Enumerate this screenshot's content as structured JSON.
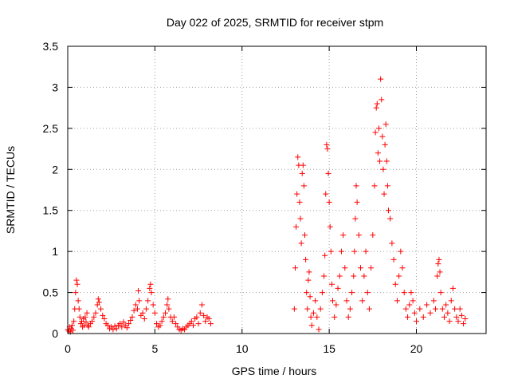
{
  "chart_data": {
    "type": "scatter",
    "title": "Day 022 of 2025, SRMTID for receiver stpm",
    "xlabel": "GPS time / hours",
    "ylabel": "SRMTID / TECUs",
    "xlim": [
      0,
      24
    ],
    "ylim": [
      0,
      3.5
    ],
    "x_ticks": [
      0,
      5,
      10,
      15,
      20
    ],
    "x_tick_labels": [
      "0",
      "5",
      "10",
      "15",
      "20"
    ],
    "y_ticks": [
      0,
      0.5,
      1,
      1.5,
      2,
      2.5,
      3,
      3.5
    ],
    "y_tick_labels": [
      "0",
      "0.5",
      "1",
      "1.5",
      "2",
      "2.5",
      "3",
      "3.5"
    ],
    "grid": true,
    "marker": "+",
    "series": [
      {
        "name": "SRMTID",
        "color": "#ff0000",
        "points": [
          [
            0.0,
            0.05
          ],
          [
            0.05,
            0.03
          ],
          [
            0.1,
            0.08
          ],
          [
            0.15,
            0.02
          ],
          [
            0.2,
            0.06
          ],
          [
            0.25,
            0.1
          ],
          [
            0.3,
            0.04
          ],
          [
            0.35,
            0.15
          ],
          [
            0.4,
            0.3
          ],
          [
            0.45,
            0.5
          ],
          [
            0.5,
            0.65
          ],
          [
            0.55,
            0.6
          ],
          [
            0.6,
            0.4
          ],
          [
            0.65,
            0.3
          ],
          [
            0.7,
            0.2
          ],
          [
            0.75,
            0.12
          ],
          [
            0.8,
            0.15
          ],
          [
            0.85,
            0.08
          ],
          [
            0.9,
            0.18
          ],
          [
            0.95,
            0.1
          ],
          [
            1.0,
            0.2
          ],
          [
            1.05,
            0.14
          ],
          [
            1.1,
            0.25
          ],
          [
            1.15,
            0.1
          ],
          [
            1.2,
            0.08
          ],
          [
            1.3,
            0.12
          ],
          [
            1.4,
            0.15
          ],
          [
            1.5,
            0.2
          ],
          [
            1.6,
            0.25
          ],
          [
            1.7,
            0.35
          ],
          [
            1.75,
            0.42
          ],
          [
            1.8,
            0.38
          ],
          [
            1.9,
            0.3
          ],
          [
            2.0,
            0.22
          ],
          [
            2.1,
            0.18
          ],
          [
            2.2,
            0.12
          ],
          [
            2.3,
            0.1
          ],
          [
            2.4,
            0.06
          ],
          [
            2.5,
            0.08
          ],
          [
            2.6,
            0.05
          ],
          [
            2.7,
            0.09
          ],
          [
            2.8,
            0.06
          ],
          [
            2.9,
            0.1
          ],
          [
            3.0,
            0.12
          ],
          [
            3.1,
            0.08
          ],
          [
            3.2,
            0.14
          ],
          [
            3.3,
            0.1
          ],
          [
            3.4,
            0.07
          ],
          [
            3.5,
            0.12
          ],
          [
            3.6,
            0.16
          ],
          [
            3.7,
            0.2
          ],
          [
            3.8,
            0.28
          ],
          [
            3.9,
            0.35
          ],
          [
            4.0,
            0.3
          ],
          [
            4.05,
            0.52
          ],
          [
            4.1,
            0.4
          ],
          [
            4.2,
            0.22
          ],
          [
            4.3,
            0.25
          ],
          [
            4.4,
            0.18
          ],
          [
            4.5,
            0.3
          ],
          [
            4.6,
            0.4
          ],
          [
            4.7,
            0.55
          ],
          [
            4.75,
            0.6
          ],
          [
            4.8,
            0.5
          ],
          [
            4.9,
            0.35
          ],
          [
            5.0,
            0.25
          ],
          [
            5.1,
            0.12
          ],
          [
            5.2,
            0.08
          ],
          [
            5.3,
            0.1
          ],
          [
            5.4,
            0.15
          ],
          [
            5.5,
            0.2
          ],
          [
            5.6,
            0.25
          ],
          [
            5.7,
            0.35
          ],
          [
            5.75,
            0.42
          ],
          [
            5.8,
            0.3
          ],
          [
            5.9,
            0.2
          ],
          [
            6.0,
            0.15
          ],
          [
            6.1,
            0.2
          ],
          [
            6.2,
            0.12
          ],
          [
            6.3,
            0.08
          ],
          [
            6.4,
            0.05
          ],
          [
            6.5,
            0.04
          ],
          [
            6.6,
            0.06
          ],
          [
            6.7,
            0.05
          ],
          [
            6.8,
            0.08
          ],
          [
            6.9,
            0.1
          ],
          [
            7.0,
            0.12
          ],
          [
            7.1,
            0.15
          ],
          [
            7.2,
            0.1
          ],
          [
            7.3,
            0.18
          ],
          [
            7.4,
            0.2
          ],
          [
            7.5,
            0.12
          ],
          [
            7.6,
            0.25
          ],
          [
            7.7,
            0.35
          ],
          [
            7.8,
            0.22
          ],
          [
            7.9,
            0.15
          ],
          [
            8.0,
            0.2
          ],
          [
            8.1,
            0.18
          ],
          [
            8.2,
            0.12
          ],
          [
            13.0,
            0.3
          ],
          [
            13.05,
            0.8
          ],
          [
            13.1,
            1.3
          ],
          [
            13.15,
            1.7
          ],
          [
            13.2,
            2.15
          ],
          [
            13.25,
            2.05
          ],
          [
            13.3,
            1.6
          ],
          [
            13.35,
            1.4
          ],
          [
            13.4,
            1.1
          ],
          [
            13.45,
            1.95
          ],
          [
            13.5,
            2.05
          ],
          [
            13.55,
            1.8
          ],
          [
            13.6,
            1.2
          ],
          [
            13.65,
            0.9
          ],
          [
            13.7,
            0.5
          ],
          [
            13.75,
            0.3
          ],
          [
            13.8,
            0.65
          ],
          [
            13.85,
            0.75
          ],
          [
            13.9,
            0.45
          ],
          [
            13.95,
            0.2
          ],
          [
            14.0,
            0.1
          ],
          [
            14.1,
            0.25
          ],
          [
            14.2,
            0.4
          ],
          [
            14.3,
            0.2
          ],
          [
            14.4,
            0.05
          ],
          [
            14.5,
            0.3
          ],
          [
            14.6,
            0.5
          ],
          [
            14.7,
            0.7
          ],
          [
            14.75,
            0.95
          ],
          [
            14.8,
            1.7
          ],
          [
            14.85,
            2.3
          ],
          [
            14.9,
            2.25
          ],
          [
            14.95,
            1.95
          ],
          [
            15.0,
            1.6
          ],
          [
            15.05,
            1.3
          ],
          [
            15.1,
            1.0
          ],
          [
            15.15,
            0.6
          ],
          [
            15.2,
            0.4
          ],
          [
            15.3,
            0.2
          ],
          [
            15.4,
            0.35
          ],
          [
            15.5,
            0.55
          ],
          [
            15.6,
            0.7
          ],
          [
            15.7,
            1.0
          ],
          [
            15.8,
            1.2
          ],
          [
            15.9,
            0.8
          ],
          [
            16.0,
            0.4
          ],
          [
            16.1,
            0.2
          ],
          [
            16.2,
            0.3
          ],
          [
            16.3,
            0.5
          ],
          [
            16.4,
            0.7
          ],
          [
            16.45,
            1.0
          ],
          [
            16.5,
            1.4
          ],
          [
            16.55,
            1.8
          ],
          [
            16.6,
            1.6
          ],
          [
            16.7,
            1.2
          ],
          [
            16.8,
            0.8
          ],
          [
            16.9,
            0.4
          ],
          [
            17.0,
            0.7
          ],
          [
            17.1,
            1.0
          ],
          [
            17.2,
            0.5
          ],
          [
            17.3,
            0.3
          ],
          [
            17.4,
            0.8
          ],
          [
            17.5,
            1.2
          ],
          [
            17.6,
            1.8
          ],
          [
            17.65,
            2.45
          ],
          [
            17.7,
            2.75
          ],
          [
            17.75,
            2.8
          ],
          [
            17.8,
            2.2
          ],
          [
            17.85,
            2.5
          ],
          [
            17.9,
            2.1
          ],
          [
            17.95,
            3.1
          ],
          [
            18.0,
            2.85
          ],
          [
            18.05,
            2.4
          ],
          [
            18.1,
            2.0
          ],
          [
            18.15,
            1.7
          ],
          [
            18.2,
            2.3
          ],
          [
            18.25,
            2.55
          ],
          [
            18.3,
            2.1
          ],
          [
            18.35,
            1.8
          ],
          [
            18.4,
            1.5
          ],
          [
            18.5,
            1.4
          ],
          [
            18.6,
            1.1
          ],
          [
            18.7,
            0.9
          ],
          [
            18.8,
            0.6
          ],
          [
            18.9,
            0.4
          ],
          [
            19.0,
            0.7
          ],
          [
            19.1,
            1.0
          ],
          [
            19.2,
            0.8
          ],
          [
            19.3,
            0.5
          ],
          [
            19.4,
            0.3
          ],
          [
            19.5,
            0.2
          ],
          [
            19.6,
            0.35
          ],
          [
            19.7,
            0.5
          ],
          [
            19.8,
            0.4
          ],
          [
            19.9,
            0.25
          ],
          [
            20.0,
            0.15
          ],
          [
            20.2,
            0.3
          ],
          [
            20.4,
            0.2
          ],
          [
            20.6,
            0.35
          ],
          [
            20.8,
            0.25
          ],
          [
            21.0,
            0.4
          ],
          [
            21.1,
            0.3
          ],
          [
            21.2,
            0.7
          ],
          [
            21.25,
            0.85
          ],
          [
            21.3,
            0.9
          ],
          [
            21.35,
            0.75
          ],
          [
            21.4,
            0.5
          ],
          [
            21.5,
            0.3
          ],
          [
            21.6,
            0.2
          ],
          [
            21.7,
            0.35
          ],
          [
            21.8,
            0.25
          ],
          [
            21.9,
            0.15
          ],
          [
            22.0,
            0.4
          ],
          [
            22.1,
            0.55
          ],
          [
            22.2,
            0.3
          ],
          [
            22.3,
            0.2
          ],
          [
            22.4,
            0.15
          ],
          [
            22.5,
            0.3
          ],
          [
            22.6,
            0.22
          ],
          [
            22.7,
            0.12
          ],
          [
            22.8,
            0.18
          ]
        ]
      }
    ]
  }
}
